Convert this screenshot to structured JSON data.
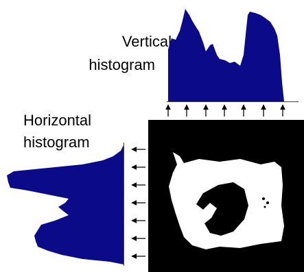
{
  "labels": {
    "vertical": [
      "Vertical",
      "histogram"
    ],
    "horizontal": [
      "Horizontal",
      "histogram"
    ]
  }
}
